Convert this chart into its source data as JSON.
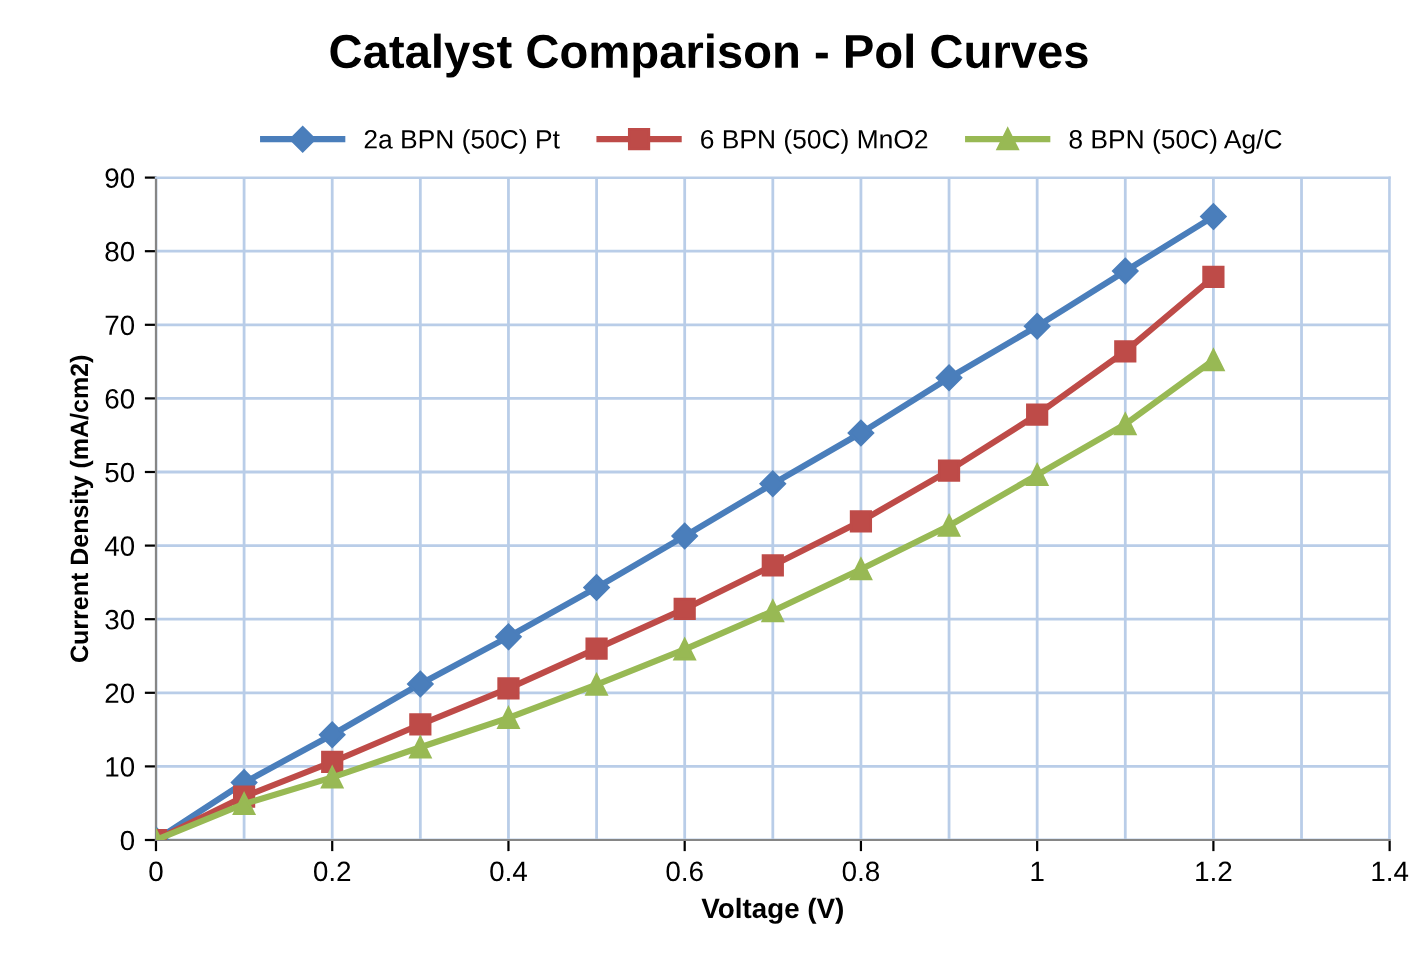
{
  "chart_data": {
    "type": "line",
    "title": "Catalyst Comparison - Pol Curves",
    "xlabel": "Voltage (V)",
    "ylabel": "Current Density (mA/cm2)",
    "x": [
      0,
      0.1,
      0.2,
      0.3,
      0.4,
      0.5,
      0.6,
      0.7,
      0.8,
      0.9,
      1.0,
      1.1,
      1.2
    ],
    "series": [
      {
        "name": "2a BPN (50C) Pt",
        "color": "#4a7ebb",
        "marker": "diamond",
        "values": [
          0,
          7.8,
          14.3,
          21.2,
          27.6,
          34.3,
          41.3,
          48.4,
          55.3,
          62.8,
          69.8,
          77.3,
          84.7
        ]
      },
      {
        "name": "6 BPN (50C) MnO2",
        "color": "#be4b48",
        "marker": "square",
        "values": [
          0,
          5.9,
          10.6,
          15.7,
          20.6,
          26,
          31.4,
          37.3,
          43.3,
          50.2,
          57.8,
          66.4,
          76.5
        ]
      },
      {
        "name": "8 BPN (50C) Ag/C",
        "color": "#98b954",
        "marker": "triangle",
        "values": [
          0,
          4.9,
          8.5,
          12.6,
          16.6,
          21.1,
          25.9,
          31.1,
          36.8,
          42.7,
          49.6,
          56.5,
          65.2
        ]
      }
    ],
    "xlim": [
      0,
      1.4
    ],
    "xticks": [
      0,
      {
        "value": 0.1,
        "label": null
      },
      0.2,
      {
        "value": 0.3,
        "label": null
      },
      0.4,
      {
        "value": 0.5,
        "label": null
      },
      0.6,
      {
        "value": 0.7,
        "label": null
      },
      0.8,
      {
        "value": 0.9,
        "label": null
      },
      1,
      {
        "value": 1.1,
        "label": null
      },
      1.2,
      {
        "value": 1.3,
        "label": null
      },
      1.4
    ],
    "ylim": [
      0,
      90
    ],
    "yticks": [
      0,
      10,
      20,
      30,
      40,
      50,
      60,
      70,
      80,
      90
    ],
    "grid": true,
    "legend": "top",
    "line_style": "solid"
  }
}
